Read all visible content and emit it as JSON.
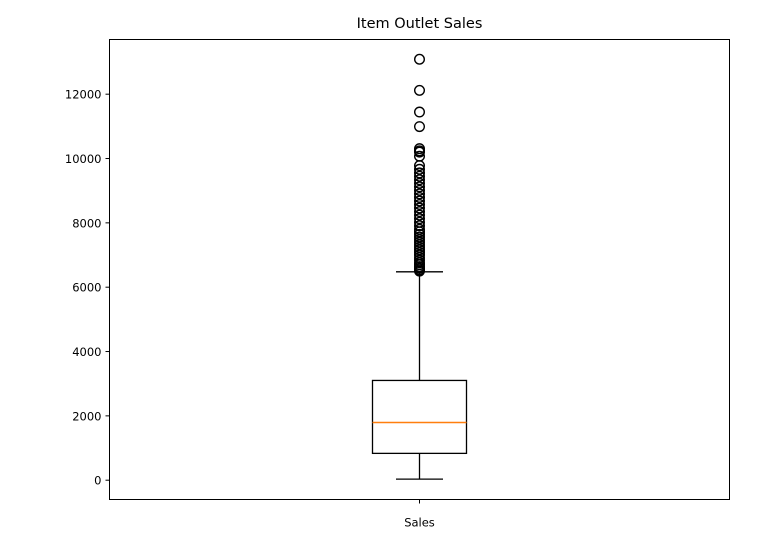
{
  "chart_data": {
    "type": "box",
    "title": "Item Outlet Sales",
    "xlabel": "",
    "ylabel": "",
    "categories": [
      "Sales"
    ],
    "ylim": [
      -600,
      13700
    ],
    "yticks": [
      0,
      2000,
      4000,
      6000,
      8000,
      10000,
      12000
    ],
    "grid": false,
    "box": {
      "whisker_low": 33,
      "q1": 834,
      "median": 1794,
      "q3": 3101,
      "whisker_high": 6478
    },
    "outliers": [
      13087,
      12118,
      11445,
      10993,
      10306,
      10237,
      10200,
      10072,
      9779,
      9665,
      9552,
      9450,
      9340,
      9230,
      9120,
      9010,
      8900,
      8790,
      8680,
      8570,
      8460,
      8350,
      8240,
      8130,
      8020,
      7910,
      7800,
      7720,
      7640,
      7560,
      7480,
      7400,
      7320,
      7240,
      7160,
      7080,
      7000,
      6920,
      6840,
      6760,
      6700,
      6640,
      6590,
      6540,
      6500
    ],
    "colors": {
      "box": "#000000",
      "median": "#ff7f0e",
      "flier_edge": "#000000"
    }
  }
}
